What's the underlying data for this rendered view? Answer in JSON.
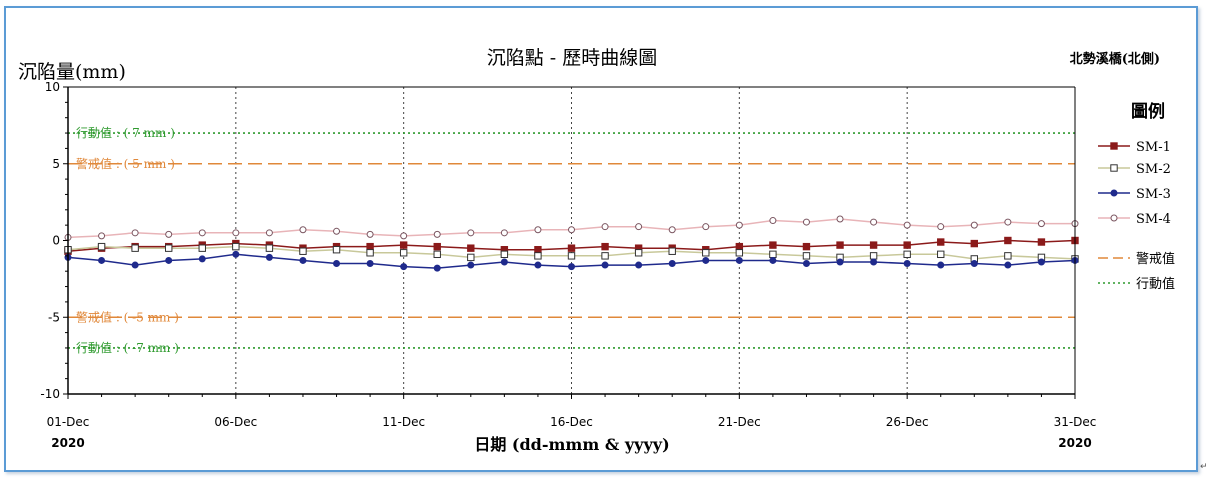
{
  "chart_data": {
    "type": "line",
    "title": "沉陷點 - 歷時曲線圖",
    "site_label": "北勢溪橋(北側)",
    "ylabel": "沉陷量(mm)",
    "xlabel": "日期  (dd-mmm & yyyy)",
    "ylim": [
      -10,
      10
    ],
    "xlim": [
      1,
      31
    ],
    "y_ticks": [
      "10",
      "5",
      "0",
      "-5",
      "-10"
    ],
    "y_tick_values": [
      10,
      5,
      0,
      -5,
      -10
    ],
    "x_ticks": [
      "01-Dec",
      "06-Dec",
      "11-Dec",
      "16-Dec",
      "21-Dec",
      "26-Dec",
      "31-Dec"
    ],
    "x_tick_values": [
      1,
      6,
      11,
      16,
      21,
      26,
      31
    ],
    "year_left": "2020",
    "year_right": "2020",
    "grid": true,
    "legend": {
      "title": "圖例",
      "position": "right",
      "entries": [
        "SM-1",
        "SM-2",
        "SM-3",
        "SM-4",
        "警戒值",
        "行動值"
      ]
    },
    "reference_lines": [
      {
        "name": "行動值",
        "value": 7,
        "label": "行動值 : ( 7 mm )",
        "color": "#2e9a2e",
        "style": "dotted"
      },
      {
        "name": "警戒值",
        "value": 5,
        "label": "警戒值 : ( 5 mm )",
        "color": "#e0883a",
        "style": "dashed"
      },
      {
        "name": "警戒值",
        "value": -5,
        "label": "警戒值 : ( -5 mm )",
        "color": "#e0883a",
        "style": "dashed"
      },
      {
        "name": "行動值",
        "value": -7,
        "label": "行動值 : ( -7 mm )",
        "color": "#2e9a2e",
        "style": "dotted"
      }
    ],
    "series": [
      {
        "name": "SM-1",
        "color": "#8b1a1a",
        "marker": "filled-square",
        "x": [
          1,
          2,
          3,
          4,
          5,
          6,
          7,
          8,
          9,
          10,
          11,
          12,
          13,
          14,
          15,
          16,
          17,
          18,
          19,
          20,
          21,
          22,
          23,
          24,
          25,
          26,
          27,
          28,
          29,
          30,
          31
        ],
        "values": [
          -0.7,
          -0.5,
          -0.4,
          -0.4,
          -0.3,
          -0.2,
          -0.3,
          -0.5,
          -0.4,
          -0.4,
          -0.3,
          -0.4,
          -0.5,
          -0.6,
          -0.6,
          -0.5,
          -0.4,
          -0.5,
          -0.5,
          -0.6,
          -0.4,
          -0.3,
          -0.4,
          -0.3,
          -0.3,
          -0.3,
          -0.1,
          -0.2,
          0.0,
          -0.1,
          0.0
        ]
      },
      {
        "name": "SM-2",
        "color": "#c8c89a",
        "marker": "open-square",
        "x": [
          1,
          2,
          3,
          4,
          5,
          6,
          7,
          8,
          9,
          10,
          11,
          12,
          13,
          14,
          15,
          16,
          17,
          18,
          19,
          20,
          21,
          22,
          23,
          24,
          25,
          26,
          27,
          28,
          29,
          30,
          31
        ],
        "values": [
          -0.6,
          -0.4,
          -0.5,
          -0.5,
          -0.5,
          -0.4,
          -0.5,
          -0.7,
          -0.6,
          -0.8,
          -0.8,
          -0.9,
          -1.1,
          -0.9,
          -1.0,
          -1.0,
          -1.0,
          -0.8,
          -0.7,
          -0.8,
          -0.8,
          -0.9,
          -1.0,
          -1.1,
          -1.0,
          -0.9,
          -0.9,
          -1.2,
          -1.0,
          -1.1,
          -1.2
        ]
      },
      {
        "name": "SM-3",
        "color": "#1f2a8c",
        "marker": "filled-circle",
        "x": [
          1,
          2,
          3,
          4,
          5,
          6,
          7,
          8,
          9,
          10,
          11,
          12,
          13,
          14,
          15,
          16,
          17,
          18,
          19,
          20,
          21,
          22,
          23,
          24,
          25,
          26,
          27,
          28,
          29,
          30,
          31
        ],
        "values": [
          -1.1,
          -1.3,
          -1.6,
          -1.3,
          -1.2,
          -0.9,
          -1.1,
          -1.3,
          -1.5,
          -1.5,
          -1.7,
          -1.8,
          -1.6,
          -1.4,
          -1.6,
          -1.7,
          -1.6,
          -1.6,
          -1.5,
          -1.3,
          -1.3,
          -1.3,
          -1.5,
          -1.4,
          -1.4,
          -1.5,
          -1.6,
          -1.5,
          -1.6,
          -1.4,
          -1.3
        ]
      },
      {
        "name": "SM-4",
        "color": "#e8b4b8",
        "marker": "open-circle",
        "x": [
          1,
          2,
          3,
          4,
          5,
          6,
          7,
          8,
          9,
          10,
          11,
          12,
          13,
          14,
          15,
          16,
          17,
          18,
          19,
          20,
          21,
          22,
          23,
          24,
          25,
          26,
          27,
          28,
          29,
          30,
          31
        ],
        "values": [
          0.2,
          0.3,
          0.5,
          0.4,
          0.5,
          0.5,
          0.5,
          0.7,
          0.6,
          0.4,
          0.3,
          0.4,
          0.5,
          0.5,
          0.7,
          0.7,
          0.9,
          0.9,
          0.7,
          0.9,
          1.0,
          1.3,
          1.2,
          1.4,
          1.2,
          1.0,
          0.9,
          1.0,
          1.2,
          1.1,
          1.1
        ]
      }
    ]
  }
}
